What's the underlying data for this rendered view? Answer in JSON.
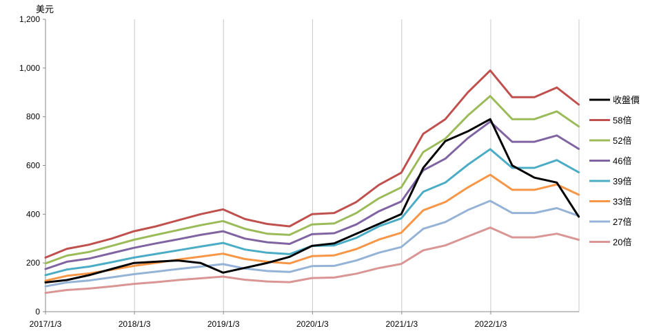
{
  "chart_data": {
    "type": "line",
    "y_unit": "美元",
    "ylim": [
      0,
      1200
    ],
    "yticks": [
      0,
      200,
      400,
      600,
      800,
      1000,
      1200
    ],
    "ytick_labels": [
      "0",
      "200",
      "400",
      "600",
      "800",
      "1,000",
      "1,200"
    ],
    "xlim": [
      "2017/1/3",
      "2022/12/31"
    ],
    "xticks": [
      "2017/1/3",
      "2018/1/3",
      "2019/1/3",
      "2020/1/3",
      "2021/1/3",
      "2022/1/3"
    ],
    "grid": "vertical",
    "legend_position": "right",
    "x": [
      "2017/1/3",
      "2017/4/1",
      "2017/7/1",
      "2017/10/1",
      "2018/1/1",
      "2018/4/1",
      "2018/7/1",
      "2018/10/1",
      "2019/1/1",
      "2019/4/1",
      "2019/7/1",
      "2019/10/1",
      "2020/1/1",
      "2020/4/1",
      "2020/7/1",
      "2020/10/1",
      "2021/1/1",
      "2021/4/1",
      "2021/7/1",
      "2021/10/1",
      "2022/1/1",
      "2022/4/1",
      "2022/7/1",
      "2022/10/1",
      "2022/12/30"
    ],
    "series": [
      {
        "name": "收盤價",
        "color": "#000000",
        "width": 3,
        "values": [
          120,
          130,
          150,
          175,
          200,
          205,
          210,
          200,
          160,
          180,
          200,
          225,
          270,
          280,
          320,
          360,
          400,
          590,
          700,
          740,
          790,
          600,
          550,
          530,
          390
        ]
      },
      {
        "name": "58倍",
        "color": "#c0504d",
        "width": 3,
        "values": [
          222,
          258,
          275,
          300,
          330,
          350,
          375,
          400,
          420,
          380,
          360,
          350,
          400,
          405,
          450,
          520,
          570,
          730,
          790,
          900,
          990,
          880,
          880,
          920,
          850
        ]
      },
      {
        "name": "52倍",
        "color": "#9bbb59",
        "width": 3,
        "values": [
          198,
          230,
          245,
          270,
          295,
          315,
          335,
          355,
          372,
          340,
          320,
          315,
          358,
          362,
          405,
          465,
          510,
          655,
          710,
          805,
          885,
          790,
          790,
          822,
          760
        ]
      },
      {
        "name": "46倍",
        "color": "#8064a2",
        "width": 3,
        "values": [
          175,
          205,
          218,
          240,
          262,
          280,
          297,
          315,
          330,
          300,
          285,
          278,
          318,
          322,
          358,
          412,
          452,
          580,
          628,
          712,
          780,
          697,
          697,
          723,
          668
        ]
      },
      {
        "name": "39倍",
        "color": "#4bacc6",
        "width": 3,
        "values": [
          150,
          173,
          185,
          203,
          222,
          237,
          252,
          267,
          282,
          255,
          242,
          236,
          270,
          272,
          303,
          350,
          383,
          492,
          530,
          603,
          667,
          590,
          590,
          622,
          572
        ]
      },
      {
        "name": "33倍",
        "color": "#f79646",
        "width": 3,
        "values": [
          127,
          147,
          157,
          172,
          188,
          200,
          214,
          226,
          238,
          216,
          205,
          198,
          228,
          231,
          257,
          296,
          324,
          416,
          450,
          510,
          562,
          500,
          500,
          522,
          480
        ]
      },
      {
        "name": "27倍",
        "color": "#95b3d7",
        "width": 3,
        "values": [
          104,
          120,
          128,
          141,
          154,
          164,
          175,
          185,
          195,
          177,
          167,
          163,
          187,
          188,
          210,
          242,
          265,
          340,
          368,
          417,
          455,
          405,
          405,
          425,
          393
        ]
      },
      {
        "name": "20倍",
        "color": "#d99694",
        "width": 3,
        "values": [
          77,
          89,
          95,
          104,
          114,
          121,
          130,
          137,
          144,
          131,
          124,
          121,
          138,
          140,
          156,
          179,
          196,
          252,
          272,
          309,
          345,
          305,
          305,
          320,
          295
        ]
      }
    ]
  }
}
